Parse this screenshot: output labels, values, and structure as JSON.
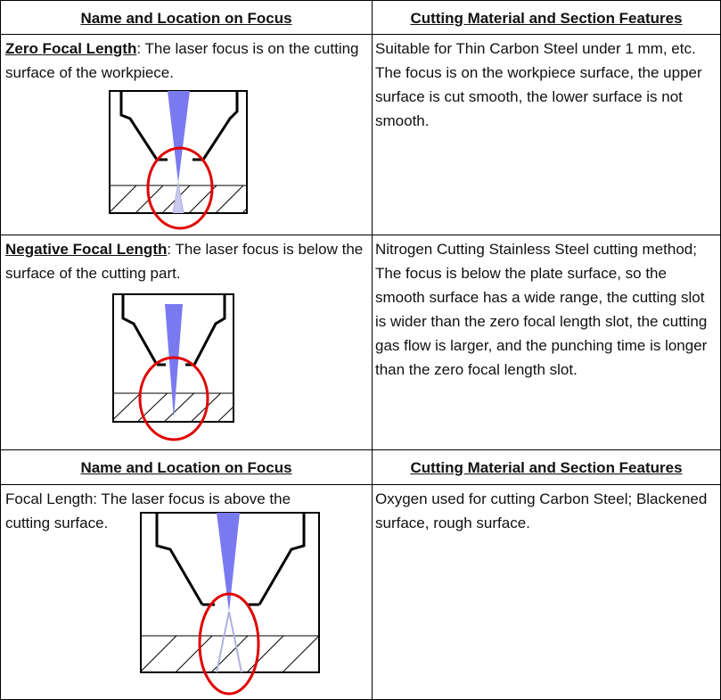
{
  "table": {
    "header1": {
      "left": "Name and Location on Focus",
      "right": "Cutting Material and Section Features"
    },
    "rows": [
      {
        "term": "Zero Focal Length",
        "left_rest": ": The laser focus is on the cutting surface of the workpiece.",
        "right": "Suitable for Thin Carbon Steel under 1 mm, etc. The focus is on the workpiece surface, the upper surface is cut smooth, the lower surface is not smooth.",
        "diagram_icon": "zero-focal-length-diagram"
      },
      {
        "term": "Negative Focal Length",
        "left_rest": ": The laser focus is below the surface of the cutting part.",
        "right": "Nitrogen Cutting Stainless Steel cutting method; The focus is below the plate surface, so the smooth surface has a wide range, the cutting slot is wider than the zero focal length slot, the cutting gas flow is larger, and the punching time is longer than the zero focal length slot.",
        "diagram_icon": "negative-focal-length-diagram"
      }
    ],
    "header2": {
      "left": "Name and Location on Focus",
      "right": "Cutting Material and Section Features"
    },
    "row3": {
      "left": "Focal Length: The laser focus is above the cutting surface.",
      "right": "Oxygen used for cutting Carbon Steel; Blackened surface, rough surface.",
      "diagram_icon": "positive-focal-length-diagram"
    }
  },
  "colors": {
    "beam": "#7a7af0",
    "circle": "#e00000",
    "line": "#000000"
  }
}
